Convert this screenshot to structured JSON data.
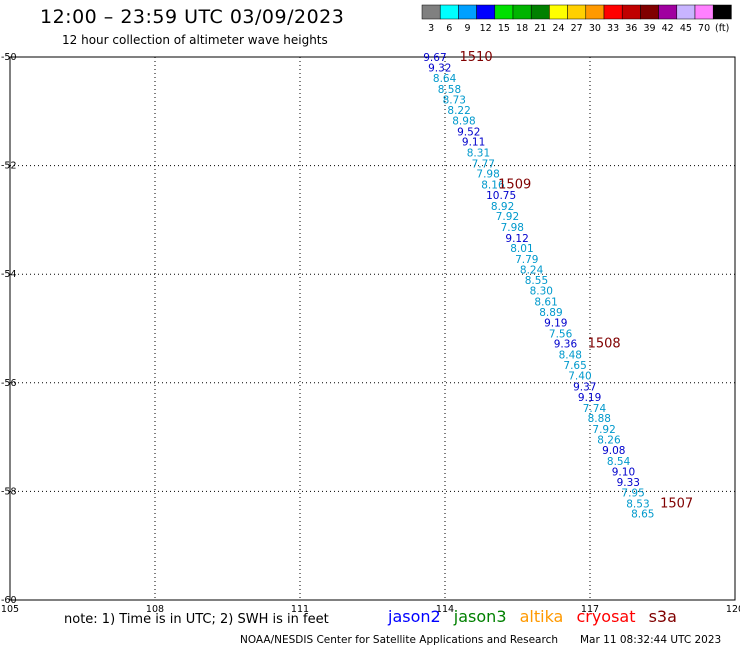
{
  "header": {
    "title": "12:00 – 23:59 UTC 03/09/2023",
    "subtitle": "12 hour collection of altimeter wave heights"
  },
  "color_legend": {
    "unit": "(ft)",
    "bins": [
      {
        "label": "3",
        "color": "#808080"
      },
      {
        "label": "6",
        "color": "#00ffff"
      },
      {
        "label": "9",
        "color": "#00a0ff"
      },
      {
        "label": "12",
        "color": "#0000ff"
      },
      {
        "label": "15",
        "color": "#00e000"
      },
      {
        "label": "18",
        "color": "#00b400"
      },
      {
        "label": "21",
        "color": "#008000"
      },
      {
        "label": "24",
        "color": "#ffff00"
      },
      {
        "label": "27",
        "color": "#ffd000"
      },
      {
        "label": "30",
        "color": "#ff9900"
      },
      {
        "label": "33",
        "color": "#ff0000"
      },
      {
        "label": "36",
        "color": "#c00000"
      },
      {
        "label": "39",
        "color": "#800000"
      },
      {
        "label": "42",
        "color": "#a000a0"
      },
      {
        "label": "45",
        "color": "#c8b4ff"
      },
      {
        "label": "70",
        "color": "#ff80ff"
      },
      {
        "label": "",
        "color": "#000000"
      }
    ]
  },
  "chart_data": {
    "type": "scatter",
    "xlim": [
      105,
      120
    ],
    "ylim": [
      -60,
      -50
    ],
    "x_ticks": [
      105,
      108,
      111,
      114,
      117,
      120
    ],
    "x_tick_labels": [
      "105",
      "108",
      "111",
      "114",
      "117",
      "120"
    ],
    "y_ticks": [
      -50,
      -52,
      -54,
      -56,
      -58,
      -60
    ],
    "y_tick_labels": [
      "-50",
      "-52",
      "-54",
      "-56",
      "-58",
      "-60"
    ],
    "grid": true,
    "colors": {
      "cyan": "#0099cc",
      "blue": "#0000cc",
      "time": "#800000"
    },
    "points": [
      {
        "x": 113.55,
        "y": -50.0,
        "v": "9.67",
        "c": "blue"
      },
      {
        "x": 113.65,
        "y": -50.19,
        "v": "9.32",
        "c": "blue"
      },
      {
        "x": 113.75,
        "y": -50.39,
        "v": "8.64",
        "c": "cyan"
      },
      {
        "x": 113.85,
        "y": -50.59,
        "v": "8.58",
        "c": "cyan"
      },
      {
        "x": 113.95,
        "y": -50.78,
        "v": "8.73",
        "c": "cyan"
      },
      {
        "x": 114.05,
        "y": -50.98,
        "v": "8.22",
        "c": "cyan"
      },
      {
        "x": 114.15,
        "y": -51.17,
        "v": "8.98",
        "c": "cyan"
      },
      {
        "x": 114.25,
        "y": -51.37,
        "v": "9.52",
        "c": "blue"
      },
      {
        "x": 114.35,
        "y": -51.56,
        "v": "9.11",
        "c": "blue"
      },
      {
        "x": 114.45,
        "y": -51.76,
        "v": "8.31",
        "c": "cyan"
      },
      {
        "x": 114.55,
        "y": -51.96,
        "v": "7.77",
        "c": "cyan"
      },
      {
        "x": 114.65,
        "y": -52.15,
        "v": "7.98",
        "c": "cyan"
      },
      {
        "x": 114.75,
        "y": -52.35,
        "v": "8.16",
        "c": "cyan"
      },
      {
        "x": 114.85,
        "y": -52.54,
        "v": "10.75",
        "c": "blue"
      },
      {
        "x": 114.95,
        "y": -52.74,
        "v": "8.92",
        "c": "cyan"
      },
      {
        "x": 115.05,
        "y": -52.93,
        "v": "7.92",
        "c": "cyan"
      },
      {
        "x": 115.15,
        "y": -53.13,
        "v": "7.98",
        "c": "cyan"
      },
      {
        "x": 115.25,
        "y": -53.33,
        "v": "9.12",
        "c": "blue"
      },
      {
        "x": 115.35,
        "y": -53.52,
        "v": "8.01",
        "c": "cyan"
      },
      {
        "x": 115.45,
        "y": -53.72,
        "v": "7.79",
        "c": "cyan"
      },
      {
        "x": 115.55,
        "y": -53.91,
        "v": "8.24",
        "c": "cyan"
      },
      {
        "x": 115.65,
        "y": -54.11,
        "v": "8.55",
        "c": "cyan"
      },
      {
        "x": 115.75,
        "y": -54.3,
        "v": "8.30",
        "c": "cyan"
      },
      {
        "x": 115.85,
        "y": -54.5,
        "v": "8.61",
        "c": "cyan"
      },
      {
        "x": 115.95,
        "y": -54.7,
        "v": "8.89",
        "c": "cyan"
      },
      {
        "x": 116.05,
        "y": -54.89,
        "v": "9.19",
        "c": "blue"
      },
      {
        "x": 116.15,
        "y": -55.09,
        "v": "7.56",
        "c": "cyan"
      },
      {
        "x": 116.25,
        "y": -55.28,
        "v": "9.36",
        "c": "blue"
      },
      {
        "x": 116.35,
        "y": -55.48,
        "v": "8.48",
        "c": "cyan"
      },
      {
        "x": 116.45,
        "y": -55.67,
        "v": "7.65",
        "c": "cyan"
      },
      {
        "x": 116.55,
        "y": -55.87,
        "v": "7.40",
        "c": "cyan"
      },
      {
        "x": 116.65,
        "y": -56.07,
        "v": "9.37",
        "c": "blue"
      },
      {
        "x": 116.75,
        "y": -56.26,
        "v": "9.19",
        "c": "blue"
      },
      {
        "x": 116.85,
        "y": -56.46,
        "v": "7.74",
        "c": "cyan"
      },
      {
        "x": 116.95,
        "y": -56.65,
        "v": "8.88",
        "c": "cyan"
      },
      {
        "x": 117.05,
        "y": -56.85,
        "v": "7.92",
        "c": "cyan"
      },
      {
        "x": 117.15,
        "y": -57.04,
        "v": "8.26",
        "c": "cyan"
      },
      {
        "x": 117.25,
        "y": -57.24,
        "v": "9.08",
        "c": "blue"
      },
      {
        "x": 117.35,
        "y": -57.44,
        "v": "8.54",
        "c": "cyan"
      },
      {
        "x": 117.45,
        "y": -57.63,
        "v": "9.10",
        "c": "blue"
      },
      {
        "x": 117.55,
        "y": -57.83,
        "v": "9.33",
        "c": "blue"
      },
      {
        "x": 117.65,
        "y": -58.02,
        "v": "7.95",
        "c": "cyan"
      },
      {
        "x": 117.75,
        "y": -58.22,
        "v": "8.53",
        "c": "cyan"
      },
      {
        "x": 117.85,
        "y": -58.41,
        "v": "8.65",
        "c": "cyan"
      }
    ],
    "time_labels": [
      {
        "x": 114.3,
        "y": -50.0,
        "text": "1510"
      },
      {
        "x": 115.1,
        "y": -52.35,
        "text": "1509"
      },
      {
        "x": 116.95,
        "y": -55.28,
        "text": "1508"
      },
      {
        "x": 118.45,
        "y": -58.22,
        "text": "1507"
      }
    ]
  },
  "footer": {
    "note": "note: 1) Time is in UTC; 2) SWH is in feet",
    "missions": [
      {
        "label": "jason2",
        "color": "#0000ff"
      },
      {
        "label": "jason3",
        "color": "#008000"
      },
      {
        "label": "altika",
        "color": "#ff9900"
      },
      {
        "label": "cryosat",
        "color": "#ff0000"
      },
      {
        "label": "s3a",
        "color": "#800000"
      }
    ],
    "credit": "NOAA/NESDIS Center for Satellite Applications and Research",
    "timestamp": "Mar 11 08:32:44 UTC 2023"
  }
}
